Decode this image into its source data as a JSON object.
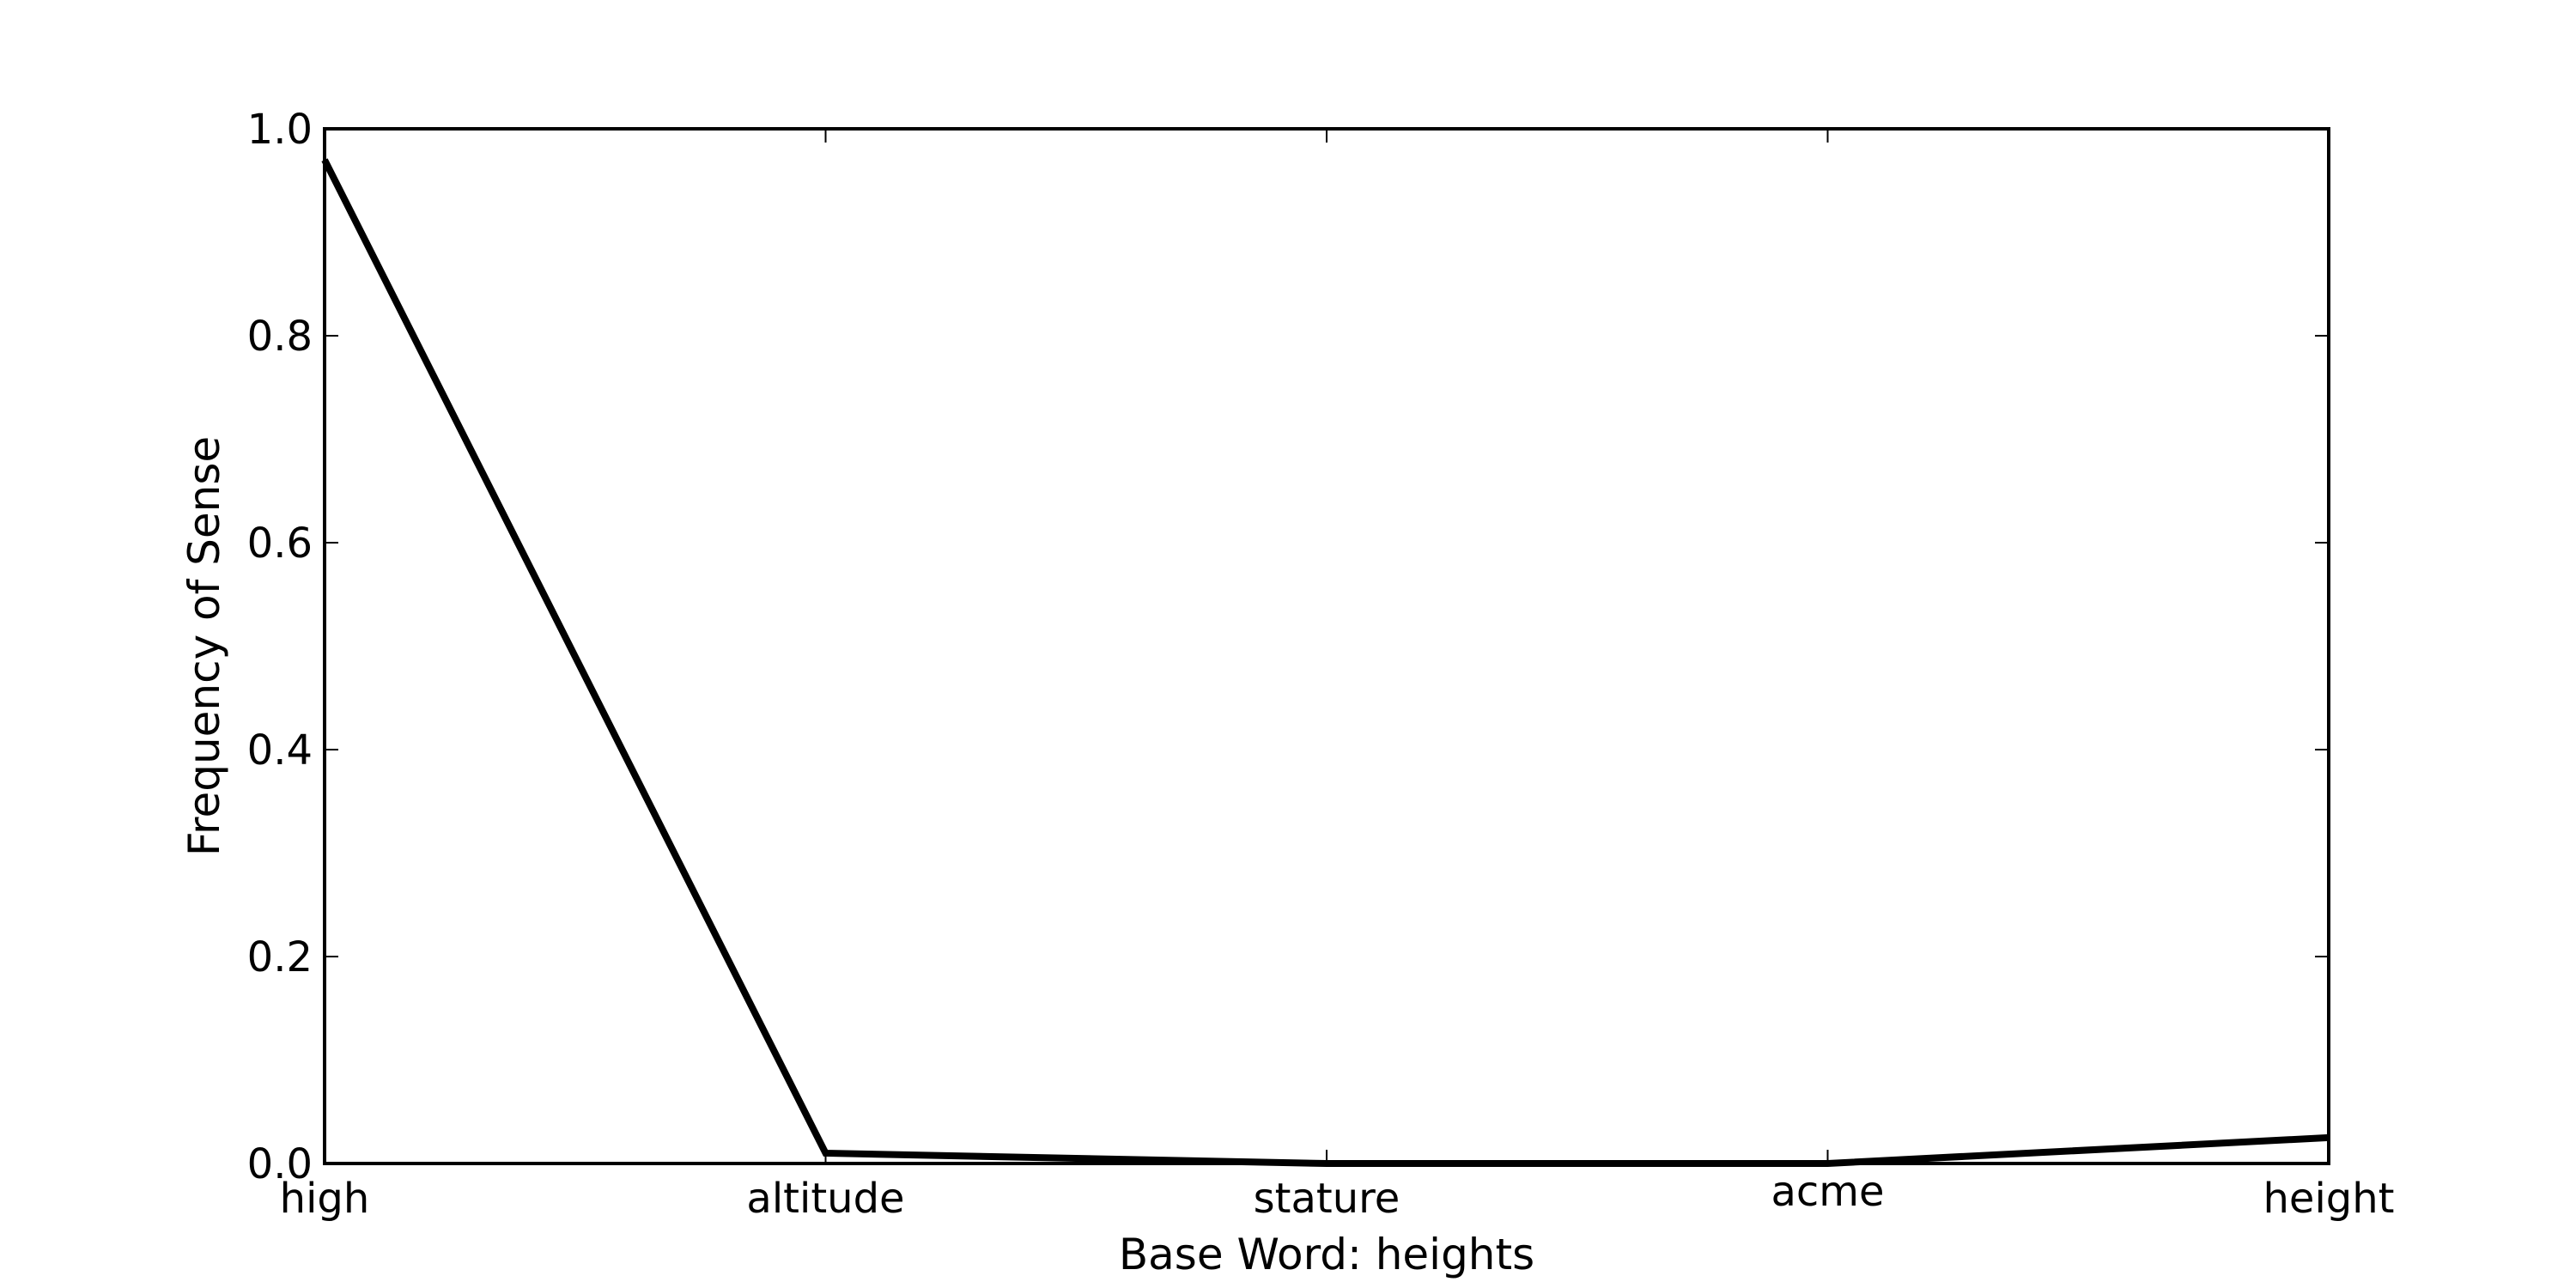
{
  "chart_data": {
    "type": "line",
    "title": "",
    "xlabel": "Base Word: heights",
    "ylabel": "Frequency of Sense",
    "categories": [
      "high",
      "altitude",
      "stature",
      "acme",
      "height"
    ],
    "series": [
      {
        "values": [
          0.97,
          0.01,
          0.0,
          0.0,
          0.025
        ]
      }
    ],
    "ylim": [
      0.0,
      1.0
    ],
    "yticks": [
      "0.0",
      "0.2",
      "0.4",
      "0.6",
      "0.8",
      "1.0"
    ],
    "grid": false,
    "legend": "none",
    "line_color": "#000000"
  }
}
